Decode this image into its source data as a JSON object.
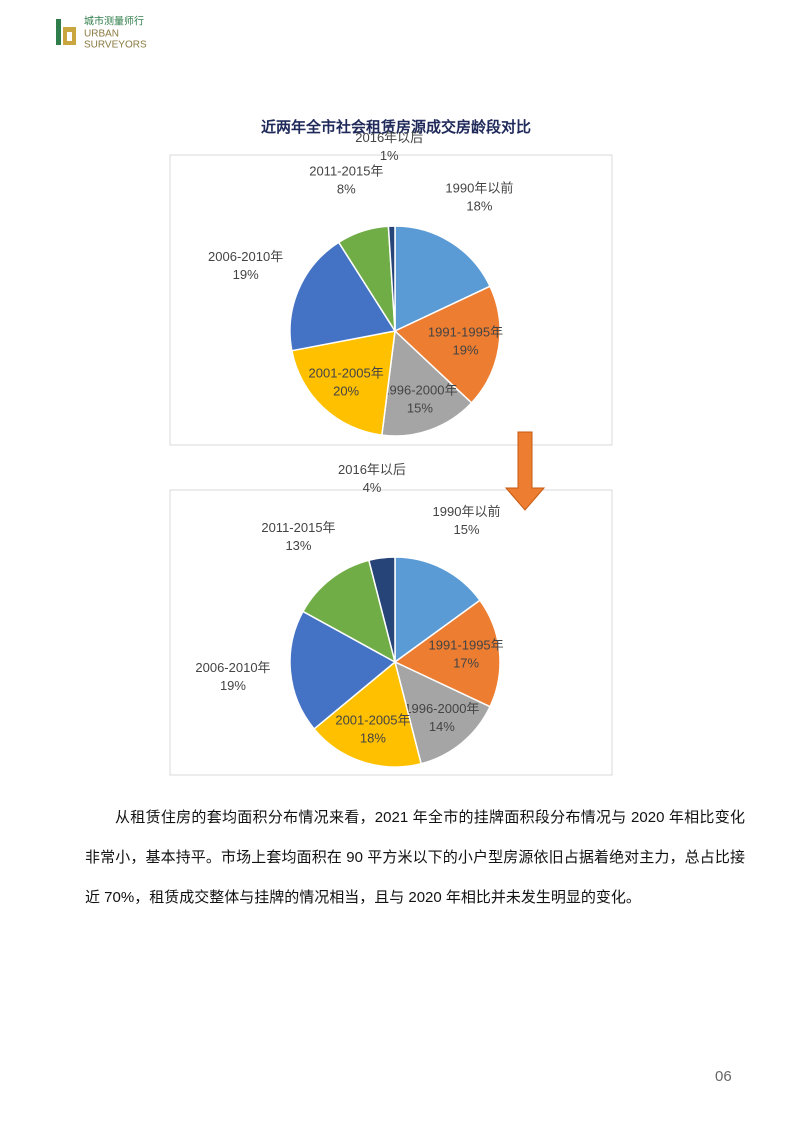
{
  "header": {
    "logo_cn": "城市测量师行",
    "logo_en_1": "URBAN",
    "logo_en_2": "SURVEYORS"
  },
  "chart_data": [
    {
      "type": "pie",
      "title": "近两年全市社会租赁房源成交房龄段对比",
      "categories": [
        "1990年以前",
        "1991-1995年",
        "1996-2000年",
        "2001-2005年",
        "2006-2010年",
        "2011-2015年",
        "2016年以后"
      ],
      "values": [
        18,
        19,
        15,
        20,
        19,
        8,
        1
      ],
      "value_labels": [
        "18%",
        "19%",
        "15%",
        "20%",
        "19%",
        "8%",
        "1%"
      ],
      "colors": [
        "#5b9bd5",
        "#ed7d31",
        "#a5a5a5",
        "#ffc000",
        "#4472c4",
        "#70ad47",
        "#264478"
      ]
    },
    {
      "type": "pie",
      "categories": [
        "1990年以前",
        "1991-1995年",
        "1996-2000年",
        "2001-2005年",
        "2006-2010年",
        "2011-2015年",
        "2016年以后"
      ],
      "values": [
        15,
        17,
        14,
        18,
        19,
        13,
        4
      ],
      "value_labels": [
        "15%",
        "17%",
        "14%",
        "18%",
        "19%",
        "13%",
        "4%"
      ],
      "colors": [
        "#5b9bd5",
        "#ed7d31",
        "#a5a5a5",
        "#ffc000",
        "#4472c4",
        "#70ad47",
        "#264478"
      ]
    }
  ],
  "body": {
    "paragraph": "从租赁住房的套均面积分布情况来看，2021 年全市的挂牌面积段分布情况与 2020 年相比变化非常小，基本持平。市场上套均面积在 90 平方米以下的小户型房源依旧占据着绝对主力，总占比接近 70%，租赁成交整体与挂牌的情况相当，且与 2020 年相比并未发生明显的变化。"
  },
  "page_number": "06"
}
